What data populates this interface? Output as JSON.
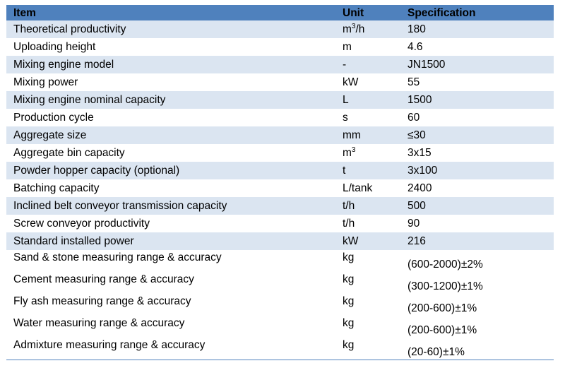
{
  "headers": {
    "item": "Item",
    "unit": "Unit",
    "spec": "Specification"
  },
  "rows": [
    {
      "item": "Theoretical productivity",
      "unit_base": "m",
      "unit_sup": "3",
      "unit_tail": "/h",
      "spec": "180"
    },
    {
      "item": "Uploading height",
      "unit": "m",
      "spec": "4.6"
    },
    {
      "item": "Mixing engine model",
      "unit": "-",
      "spec": "JN1500"
    },
    {
      "item": "Mixing power",
      "unit": "kW",
      "spec": "55"
    },
    {
      "item": "Mixing engine nominal capacity",
      "unit": "L",
      "spec": "1500"
    },
    {
      "item": "Production cycle",
      "unit": "s",
      "spec": "60"
    },
    {
      "item": "Aggregate size",
      "unit": "mm",
      "spec": "≤30"
    },
    {
      "item": "Aggregate bin capacity",
      "unit_base": "m",
      "unit_sup": "3",
      "unit_tail": "",
      "spec": "3x15"
    },
    {
      "item": "Powder hopper capacity (optional)",
      "unit": "t",
      "spec": "3x100"
    },
    {
      "item": "Batching capacity",
      "unit": "L/tank",
      "spec": "2400"
    },
    {
      "item": "Inclined belt conveyor transmission capacity",
      "unit": "t/h",
      "spec": "500"
    },
    {
      "item": "Screw conveyor productivity",
      "unit": "t/h",
      "spec": "90"
    },
    {
      "item": "Standard installed power",
      "unit": "kW",
      "spec": "216"
    },
    {
      "item": "Sand & stone measuring range & accuracy",
      "unit": "kg",
      "spec": "(600-2000)±2%"
    },
    {
      "item": "Cement measuring range & accuracy",
      "unit": "kg",
      "spec": "(300-1200)±1%"
    },
    {
      "item": "Fly ash measuring range & accuracy",
      "unit": "kg",
      "spec": "(200-600)±1%"
    },
    {
      "item": "Water measuring range & accuracy",
      "unit": "kg",
      "spec": "(200-600)±1%"
    },
    {
      "item": "Admixture measuring range & accuracy",
      "unit": "kg",
      "spec": "(20-60)±1%"
    }
  ],
  "colors": {
    "header": "#4f81bd",
    "band": "#dbe5f1"
  }
}
